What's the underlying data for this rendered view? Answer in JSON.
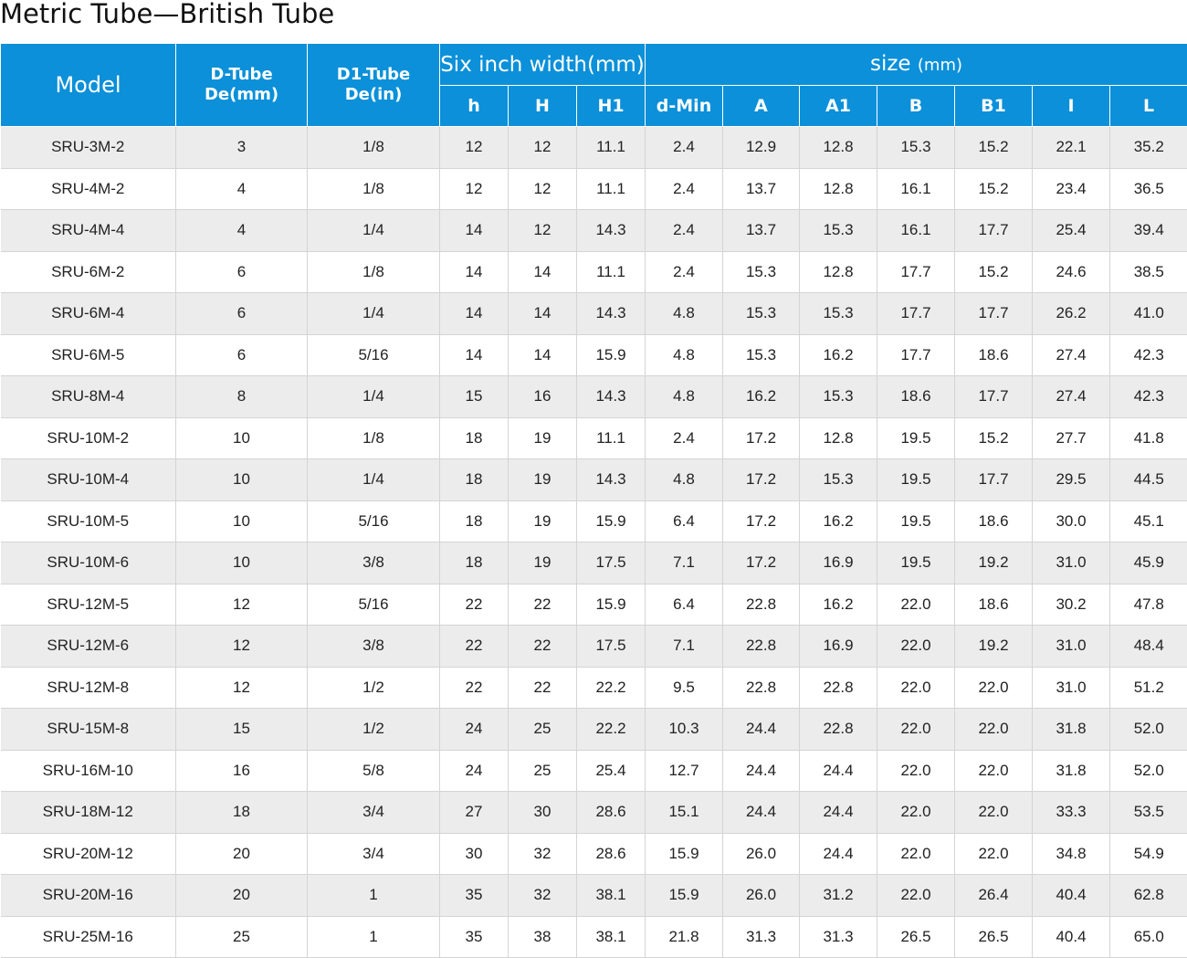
{
  "title": "Metric Tube—British Tube",
  "header": {
    "model": "Model",
    "d_tube": [
      "D-Tube",
      "De(mm)"
    ],
    "d1_tube": [
      "D1-Tube",
      "De(in)"
    ],
    "six_inch": "Six inch width(mm)",
    "size_main": "size",
    "size_unit": "(mm)",
    "sub": [
      "h",
      "H",
      "H1",
      "d-Min",
      "A",
      "A1",
      "B",
      "B1",
      "I",
      "L"
    ]
  },
  "rows": [
    [
      "SRU-3M-2",
      "3",
      "1/8",
      "12",
      "12",
      "11.1",
      "2.4",
      "12.9",
      "12.8",
      "15.3",
      "15.2",
      "22.1",
      "35.2"
    ],
    [
      "SRU-4M-2",
      "4",
      "1/8",
      "12",
      "12",
      "11.1",
      "2.4",
      "13.7",
      "12.8",
      "16.1",
      "15.2",
      "23.4",
      "36.5"
    ],
    [
      "SRU-4M-4",
      "4",
      "1/4",
      "14",
      "12",
      "14.3",
      "2.4",
      "13.7",
      "15.3",
      "16.1",
      "17.7",
      "25.4",
      "39.4"
    ],
    [
      "SRU-6M-2",
      "6",
      "1/8",
      "14",
      "14",
      "11.1",
      "2.4",
      "15.3",
      "12.8",
      "17.7",
      "15.2",
      "24.6",
      "38.5"
    ],
    [
      "SRU-6M-4",
      "6",
      "1/4",
      "14",
      "14",
      "14.3",
      "4.8",
      "15.3",
      "15.3",
      "17.7",
      "17.7",
      "26.2",
      "41.0"
    ],
    [
      "SRU-6M-5",
      "6",
      "5/16",
      "14",
      "14",
      "15.9",
      "4.8",
      "15.3",
      "16.2",
      "17.7",
      "18.6",
      "27.4",
      "42.3"
    ],
    [
      "SRU-8M-4",
      "8",
      "1/4",
      "15",
      "16",
      "14.3",
      "4.8",
      "16.2",
      "15.3",
      "18.6",
      "17.7",
      "27.4",
      "42.3"
    ],
    [
      "SRU-10M-2",
      "10",
      "1/8",
      "18",
      "19",
      "11.1",
      "2.4",
      "17.2",
      "12.8",
      "19.5",
      "15.2",
      "27.7",
      "41.8"
    ],
    [
      "SRU-10M-4",
      "10",
      "1/4",
      "18",
      "19",
      "14.3",
      "4.8",
      "17.2",
      "15.3",
      "19.5",
      "17.7",
      "29.5",
      "44.5"
    ],
    [
      "SRU-10M-5",
      "10",
      "5/16",
      "18",
      "19",
      "15.9",
      "6.4",
      "17.2",
      "16.2",
      "19.5",
      "18.6",
      "30.0",
      "45.1"
    ],
    [
      "SRU-10M-6",
      "10",
      "3/8",
      "18",
      "19",
      "17.5",
      "7.1",
      "17.2",
      "16.9",
      "19.5",
      "19.2",
      "31.0",
      "45.9"
    ],
    [
      "SRU-12M-5",
      "12",
      "5/16",
      "22",
      "22",
      "15.9",
      "6.4",
      "22.8",
      "16.2",
      "22.0",
      "18.6",
      "30.2",
      "47.8"
    ],
    [
      "SRU-12M-6",
      "12",
      "3/8",
      "22",
      "22",
      "17.5",
      "7.1",
      "22.8",
      "16.9",
      "22.0",
      "19.2",
      "31.0",
      "48.4"
    ],
    [
      "SRU-12M-8",
      "12",
      "1/2",
      "22",
      "22",
      "22.2",
      "9.5",
      "22.8",
      "22.8",
      "22.0",
      "22.0",
      "31.0",
      "51.2"
    ],
    [
      "SRU-15M-8",
      "15",
      "1/2",
      "24",
      "25",
      "22.2",
      "10.3",
      "24.4",
      "22.8",
      "22.0",
      "22.0",
      "31.8",
      "52.0"
    ],
    [
      "SRU-16M-10",
      "16",
      "5/8",
      "24",
      "25",
      "25.4",
      "12.7",
      "24.4",
      "24.4",
      "22.0",
      "22.0",
      "31.8",
      "52.0"
    ],
    [
      "SRU-18M-12",
      "18",
      "3/4",
      "27",
      "30",
      "28.6",
      "15.1",
      "24.4",
      "24.4",
      "22.0",
      "22.0",
      "33.3",
      "53.5"
    ],
    [
      "SRU-20M-12",
      "20",
      "3/4",
      "30",
      "32",
      "28.6",
      "15.9",
      "26.0",
      "24.4",
      "22.0",
      "22.0",
      "34.8",
      "54.9"
    ],
    [
      "SRU-20M-16",
      "20",
      "1",
      "35",
      "32",
      "38.1",
      "15.9",
      "26.0",
      "31.2",
      "22.0",
      "26.4",
      "40.4",
      "62.8"
    ],
    [
      "SRU-25M-16",
      "25",
      "1",
      "35",
      "38",
      "38.1",
      "21.8",
      "31.3",
      "31.3",
      "26.5",
      "26.5",
      "40.4",
      "65.0"
    ]
  ]
}
